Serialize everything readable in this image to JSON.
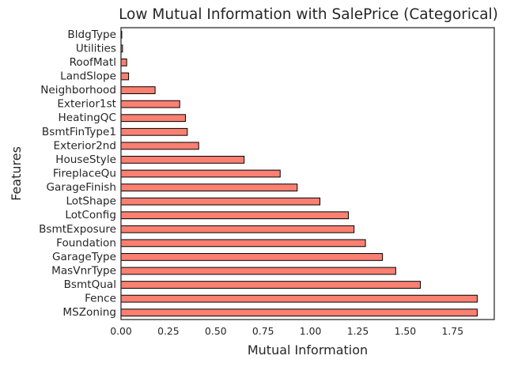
{
  "chart_data": {
    "type": "bar",
    "orientation": "horizontal",
    "title": "Low Mutual Information with SalePrice (Categorical)",
    "xlabel": "Mutual Information",
    "ylabel": "Features",
    "categories": [
      "BldgType",
      "Utilities",
      "RoofMatl",
      "LandSlope",
      "Neighborhood",
      "Exterior1st",
      "HeatingQC",
      "BsmtFinType1",
      "Exterior2nd",
      "HouseStyle",
      "FireplaceQu",
      "GarageFinish",
      "LotShape",
      "LotConfig",
      "BsmtExposure",
      "Foundation",
      "GarageType",
      "MasVnrType",
      "BsmtQual",
      "Fence",
      "MSZoning"
    ],
    "values": [
      0.004,
      0.008,
      0.03,
      0.04,
      0.18,
      0.31,
      0.34,
      0.35,
      0.41,
      0.65,
      0.84,
      0.93,
      1.05,
      1.2,
      1.23,
      1.29,
      1.38,
      1.45,
      1.58,
      1.88,
      1.88
    ],
    "xlim": [
      0,
      1.97
    ],
    "xticks": [
      "0.00",
      "0.25",
      "0.50",
      "0.75",
      "1.00",
      "1.25",
      "1.50",
      "1.75"
    ],
    "bar_color": "#fa8072",
    "edge_color": "#000000",
    "grid": false,
    "legend": "none"
  }
}
